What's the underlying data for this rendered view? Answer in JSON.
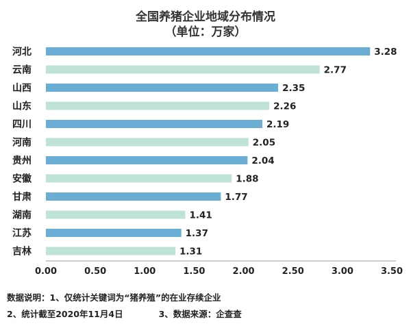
{
  "title_line1": "全国养猪企业地域分布情况",
  "title_line2": "（单位：万家）",
  "colors": {
    "dark_bar": "#6aaed6",
    "light_bar": "#bfe3d8",
    "axis": "#999999",
    "text": "#222222"
  },
  "chart_data": {
    "type": "bar",
    "orientation": "horizontal",
    "title": "全国养猪企业地域分布情况",
    "subtitle": "（单位：万家）",
    "categories": [
      "河北",
      "云南",
      "山西",
      "山东",
      "四川",
      "河南",
      "贵州",
      "安徽",
      "甘肃",
      "湖南",
      "江苏",
      "吉林"
    ],
    "values": [
      3.28,
      2.77,
      2.35,
      2.26,
      2.19,
      2.05,
      2.04,
      1.88,
      1.77,
      1.41,
      1.37,
      1.31
    ],
    "value_labels": [
      "3.28",
      "2.77",
      "2.35",
      "2.26",
      "2.19",
      "2.05",
      "2.04",
      "1.88",
      "1.77",
      "1.41",
      "1.37",
      "1.31"
    ],
    "xlim": [
      0,
      3.5
    ],
    "xticks": [
      "0.00",
      "0.50",
      "1.00",
      "1.50",
      "2.00",
      "2.50",
      "3.00",
      "3.50"
    ],
    "grid": false
  },
  "notes": {
    "line1": "数据说明：1、仅统计关键词为“猪养殖”的在业存续企业",
    "line2_a": "2、统计截至2020年11月4日",
    "line2_b": "3、数据来源：企查查"
  }
}
